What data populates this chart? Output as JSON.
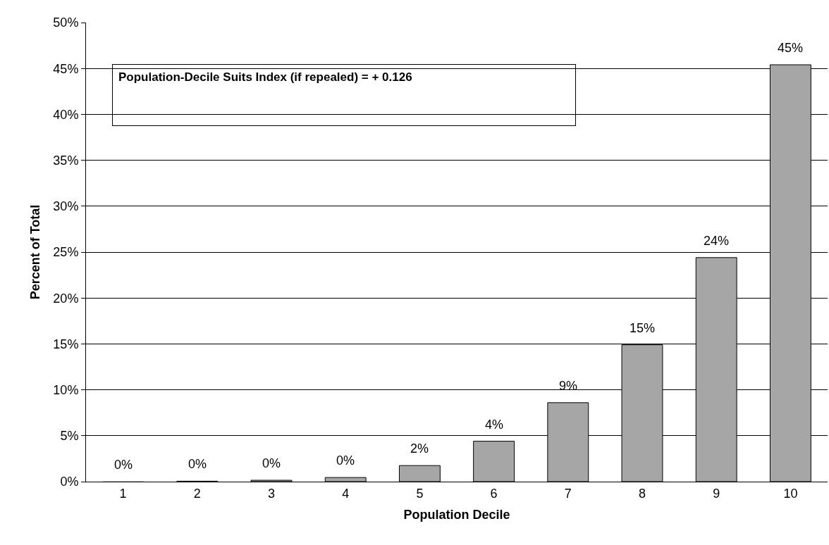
{
  "chart_data": {
    "type": "bar",
    "xlabel": "Population Decile",
    "ylabel": "Percent of Total",
    "categories": [
      "1",
      "2",
      "3",
      "4",
      "5",
      "6",
      "7",
      "8",
      "9",
      "10"
    ],
    "values": [
      0,
      0.05,
      0.15,
      0.45,
      1.75,
      4.4,
      8.6,
      14.9,
      24.4,
      45.4
    ],
    "value_labels": [
      "0%",
      "0%",
      "0%",
      "0%",
      "2%",
      "4%",
      "9%",
      "15%",
      "24%",
      "45%"
    ],
    "color": "#a6a6a6",
    "ylim": [
      0,
      50
    ],
    "yticks": [
      {
        "value": 0,
        "label": "0%"
      },
      {
        "value": 5,
        "label": "5%"
      },
      {
        "value": 10,
        "label": "10%"
      },
      {
        "value": 15,
        "label": "15%"
      },
      {
        "value": 20,
        "label": "20%"
      },
      {
        "value": 25,
        "label": "25%"
      },
      {
        "value": 30,
        "label": "30%"
      },
      {
        "value": 35,
        "label": "35%"
      },
      {
        "value": 40,
        "label": "40%"
      },
      {
        "value": 45,
        "label": "45%"
      },
      {
        "value": 50,
        "label": "50%"
      }
    ],
    "grid": "y",
    "annotations": [
      "Population-Decile Suits Index (if repealed) = + 0.126"
    ]
  }
}
